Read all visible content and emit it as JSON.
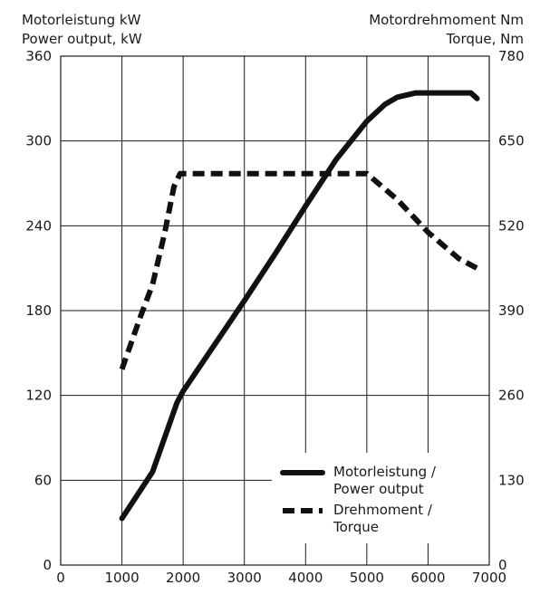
{
  "chart_data": {
    "type": "line",
    "title": "",
    "left_axis_title": [
      "Motorleistung kW",
      "Power output, kW"
    ],
    "right_axis_title": [
      "Motordrehmoment Nm",
      "Torque, Nm"
    ],
    "xlim": [
      0,
      7000
    ],
    "ylim_left": [
      0,
      360
    ],
    "ylim_right": [
      0,
      780
    ],
    "x_ticks": [
      "0",
      "1000",
      "2000",
      "3000",
      "4000",
      "5000",
      "6000",
      "7000"
    ],
    "y_left_ticks": [
      "0",
      "60",
      "120",
      "180",
      "240",
      "300",
      "360"
    ],
    "y_right_ticks": [
      "0",
      "130",
      "260",
      "390",
      "520",
      "650",
      "780"
    ],
    "grid": true,
    "legend_position": "bottom-right",
    "series": [
      {
        "name": "Motorleistung / Power output",
        "axis": "left",
        "style": "solid",
        "x": [
          1000,
          1500,
          1900,
          2000,
          2500,
          3000,
          3500,
          4000,
          4500,
          5000,
          5300,
          5500,
          5800,
          6000,
          6500,
          6700,
          6800
        ],
        "y": [
          33,
          66,
          115,
          123,
          155,
          187,
          220,
          254,
          287,
          314,
          326,
          331,
          334,
          334,
          334,
          334,
          330
        ]
      },
      {
        "name": "Drehmoment / Torque",
        "axis": "right",
        "style": "dashed",
        "x": [
          1000,
          1300,
          1500,
          1700,
          1850,
          1950,
          2500,
          3000,
          3500,
          4000,
          4500,
          5000,
          5500,
          6000,
          6500,
          6800
        ],
        "y": [
          300,
          380,
          430,
          510,
          580,
          600,
          600,
          600,
          600,
          600,
          600,
          600,
          560,
          510,
          470,
          455
        ]
      }
    ]
  },
  "legend": {
    "items": [
      {
        "lines": [
          "Motorleistung /",
          "Power output"
        ]
      },
      {
        "lines": [
          "Drehmoment /",
          "Torque"
        ]
      }
    ]
  }
}
